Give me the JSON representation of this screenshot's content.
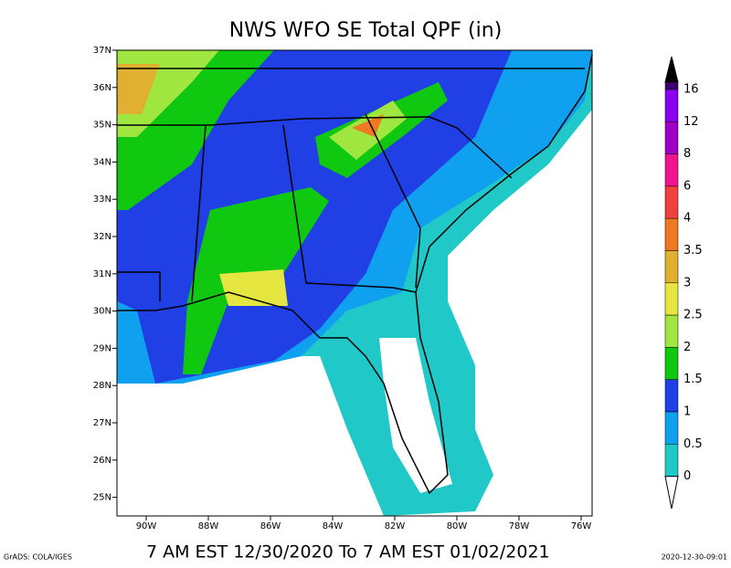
{
  "title": "NWS WFO SE Total QPF (in)",
  "subtitle": "7 AM EST 12/30/2020 To 7 AM EST 01/02/2021",
  "footer_left": "GrADS: COLA/IGES",
  "footer_right": "2020-12-30-09:01",
  "lat_labels": [
    "37N",
    "36N",
    "35N",
    "34N",
    "33N",
    "32N",
    "31N",
    "30N",
    "29N",
    "28N",
    "27N",
    "26N",
    "25N"
  ],
  "lon_labels": [
    "90W",
    "88W",
    "86W",
    "84W",
    "82W",
    "80W",
    "78W",
    "76W"
  ],
  "legend": {
    "labels": [
      "16",
      "12",
      "8",
      "6",
      "4",
      "3.5",
      "3",
      "2.5",
      "2",
      "1.5",
      "1",
      "0.5",
      "0"
    ],
    "colors": [
      "#3c0070",
      "#8a00f0",
      "#a000c8",
      "#f01490",
      "#f04040",
      "#f07820",
      "#e0b030",
      "#e6e640",
      "#a0e640",
      "#10c810",
      "#2040e6",
      "#10a0f0",
      "#20c8c8"
    ]
  }
}
